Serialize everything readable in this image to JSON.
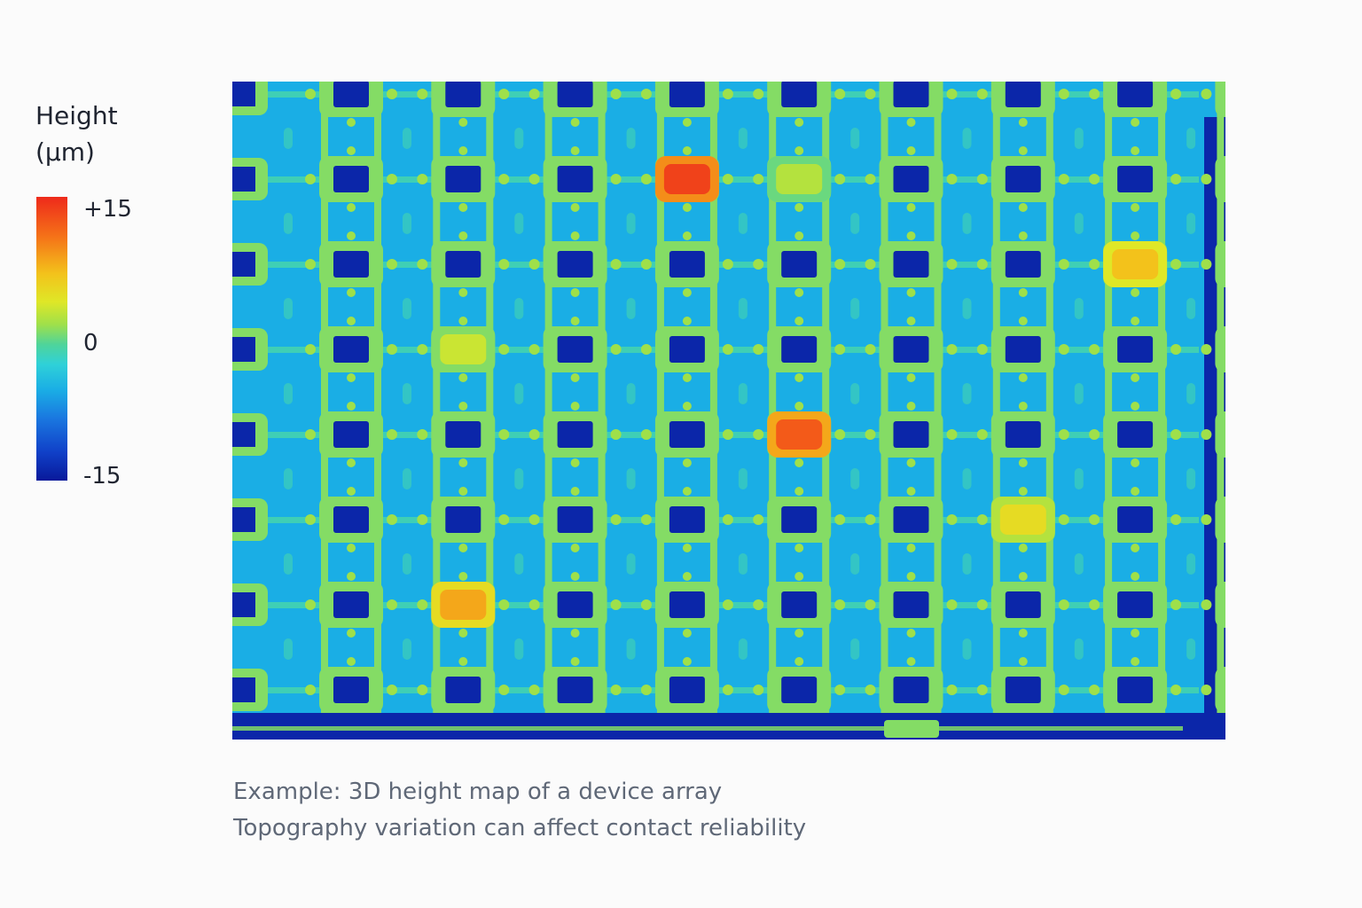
{
  "legend": {
    "title_line1": "Height",
    "title_line2": "(μm)",
    "max_label": "+15",
    "mid_label": "0",
    "min_label": "-15"
  },
  "captions": {
    "line1": "Example: 3D height map of a device array",
    "line2": "Topography variation can affect contact reliability"
  },
  "chart_data": {
    "type": "heatmap",
    "title": "",
    "value_unit": "μm",
    "value_range": [
      -15,
      15
    ],
    "colormap": [
      "#08199a",
      "#1040c8",
      "#1a78e0",
      "#1aaee5",
      "#2fd1d8",
      "#4fd49a",
      "#9fe04a",
      "#dfe727",
      "#f3c21b",
      "#f57218",
      "#ee2a1b"
    ],
    "background_height": -6,
    "frame_height": 2,
    "trace_height": -1,
    "pad_height": -14,
    "grid": {
      "columns": 9,
      "rows": 8
    },
    "hotspots": [
      {
        "column": 4,
        "row": 2,
        "height": 14
      },
      {
        "column": 5,
        "row": 2,
        "height": 4
      },
      {
        "column": 8,
        "row": 3,
        "height": 9
      },
      {
        "column": 2,
        "row": 4,
        "height": 5
      },
      {
        "column": 5,
        "row": 5,
        "height": 13
      },
      {
        "column": 7,
        "row": 6,
        "height": 7
      },
      {
        "column": 2,
        "row": 7,
        "height": 10
      }
    ],
    "colorbar_ticks": [
      "+15",
      "0",
      "-15"
    ]
  }
}
